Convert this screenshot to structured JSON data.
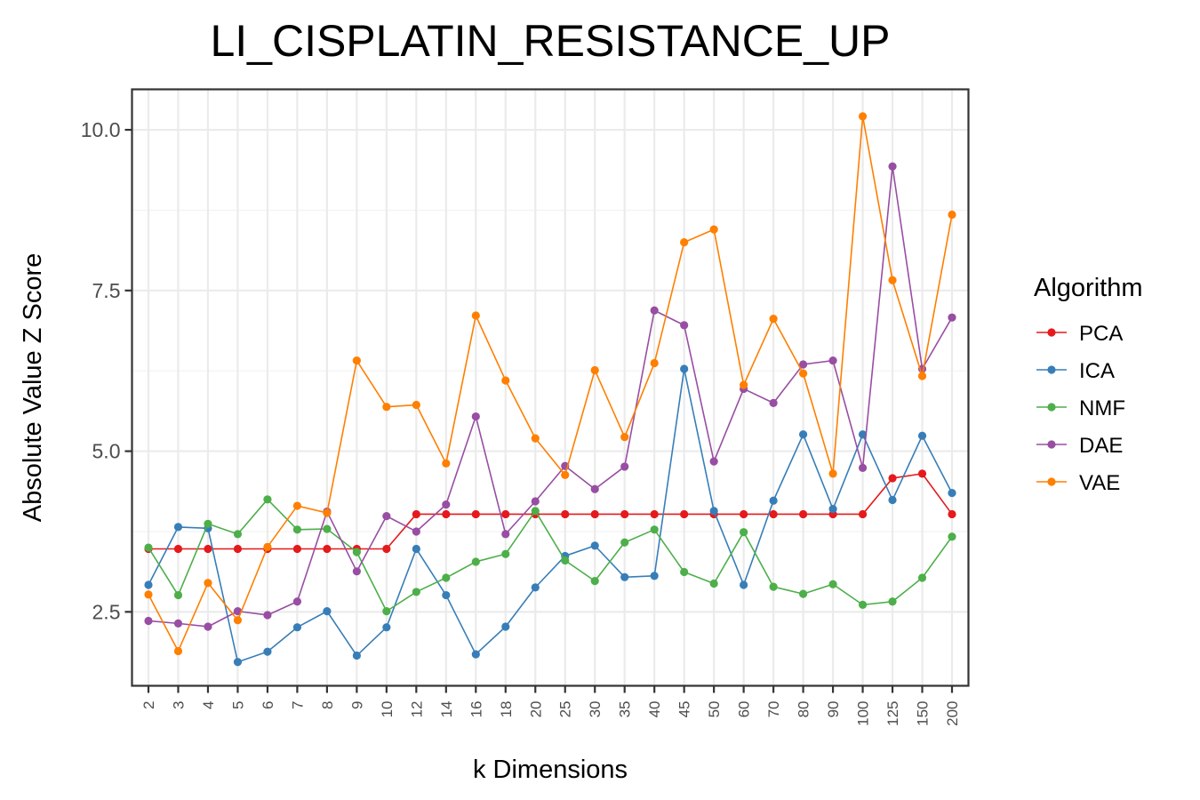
{
  "chart_data": {
    "type": "line",
    "title": "LI_CISPLATIN_RESISTANCE_UP",
    "xlabel": "k Dimensions",
    "ylabel": "Absolute Value Z Score",
    "categories": [
      "2",
      "3",
      "4",
      "5",
      "6",
      "7",
      "8",
      "9",
      "10",
      "12",
      "14",
      "16",
      "18",
      "20",
      "25",
      "30",
      "35",
      "40",
      "45",
      "50",
      "60",
      "70",
      "80",
      "90",
      "100",
      "125",
      "150",
      "200"
    ],
    "ylim": [
      1.35,
      10.63
    ],
    "yticks": [
      2.5,
      5.0,
      7.5,
      10.0
    ],
    "ytick_labels": [
      "2.5",
      "5.0",
      "7.5",
      "10.0"
    ],
    "grid": true,
    "legend": {
      "title": "Algorithm",
      "position": "right"
    },
    "series": [
      {
        "name": "PCA",
        "color": "#E41A1C",
        "values": [
          3.48,
          3.48,
          3.48,
          3.48,
          3.48,
          3.48,
          3.48,
          3.48,
          3.48,
          4.02,
          4.02,
          4.02,
          4.02,
          4.02,
          4.02,
          4.02,
          4.02,
          4.02,
          4.02,
          4.02,
          4.02,
          4.02,
          4.02,
          4.02,
          4.02,
          4.58,
          4.65,
          4.02
        ]
      },
      {
        "name": "ICA",
        "color": "#377EB8",
        "values": [
          2.92,
          3.82,
          3.8,
          1.72,
          1.88,
          2.26,
          2.51,
          1.82,
          2.26,
          3.48,
          2.76,
          1.84,
          2.27,
          2.88,
          3.37,
          3.53,
          3.04,
          3.06,
          6.28,
          4.07,
          2.92,
          4.23,
          5.26,
          4.1,
          5.26,
          4.24,
          5.24,
          4.35
        ]
      },
      {
        "name": "NMF",
        "color": "#4DAF4A",
        "values": [
          3.5,
          2.76,
          3.87,
          3.71,
          4.25,
          3.78,
          3.79,
          3.43,
          2.51,
          2.81,
          3.03,
          3.28,
          3.4,
          4.07,
          3.3,
          2.98,
          3.58,
          3.78,
          3.12,
          2.94,
          3.74,
          2.89,
          2.78,
          2.93,
          2.61,
          2.66,
          3.03,
          3.67
        ]
      },
      {
        "name": "DAE",
        "color": "#984EA3",
        "values": [
          2.36,
          2.32,
          2.27,
          2.51,
          2.45,
          2.66,
          4.06,
          3.13,
          3.99,
          3.75,
          4.17,
          5.54,
          3.71,
          4.22,
          4.77,
          4.41,
          4.76,
          7.19,
          6.96,
          4.84,
          5.97,
          5.75,
          6.35,
          6.41,
          4.74,
          9.43,
          6.28,
          7.08
        ]
      },
      {
        "name": "VAE",
        "color": "#FF7F00",
        "values": [
          2.77,
          1.89,
          2.95,
          2.37,
          3.51,
          4.15,
          4.04,
          6.41,
          5.69,
          5.72,
          4.81,
          7.11,
          6.1,
          5.2,
          4.63,
          6.26,
          5.22,
          6.37,
          8.25,
          8.45,
          6.03,
          7.06,
          6.21,
          4.65,
          10.21,
          7.66,
          6.17,
          8.68
        ]
      }
    ]
  }
}
